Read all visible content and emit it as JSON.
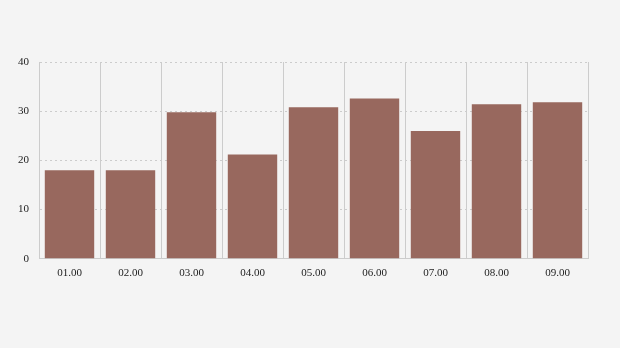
{
  "chart_data": {
    "type": "bar",
    "categories": [
      "01.00",
      "02.00",
      "03.00",
      "04.00",
      "05.00",
      "06.00",
      "07.00",
      "08.00",
      "09.00"
    ],
    "values": [
      18,
      18,
      29.8,
      21.2,
      30.8,
      32.6,
      26,
      31.4,
      31.8
    ],
    "color": "#98685e",
    "ylim": [
      0,
      40
    ],
    "yticks": [
      0,
      10,
      20,
      30,
      40
    ],
    "grid": true
  }
}
